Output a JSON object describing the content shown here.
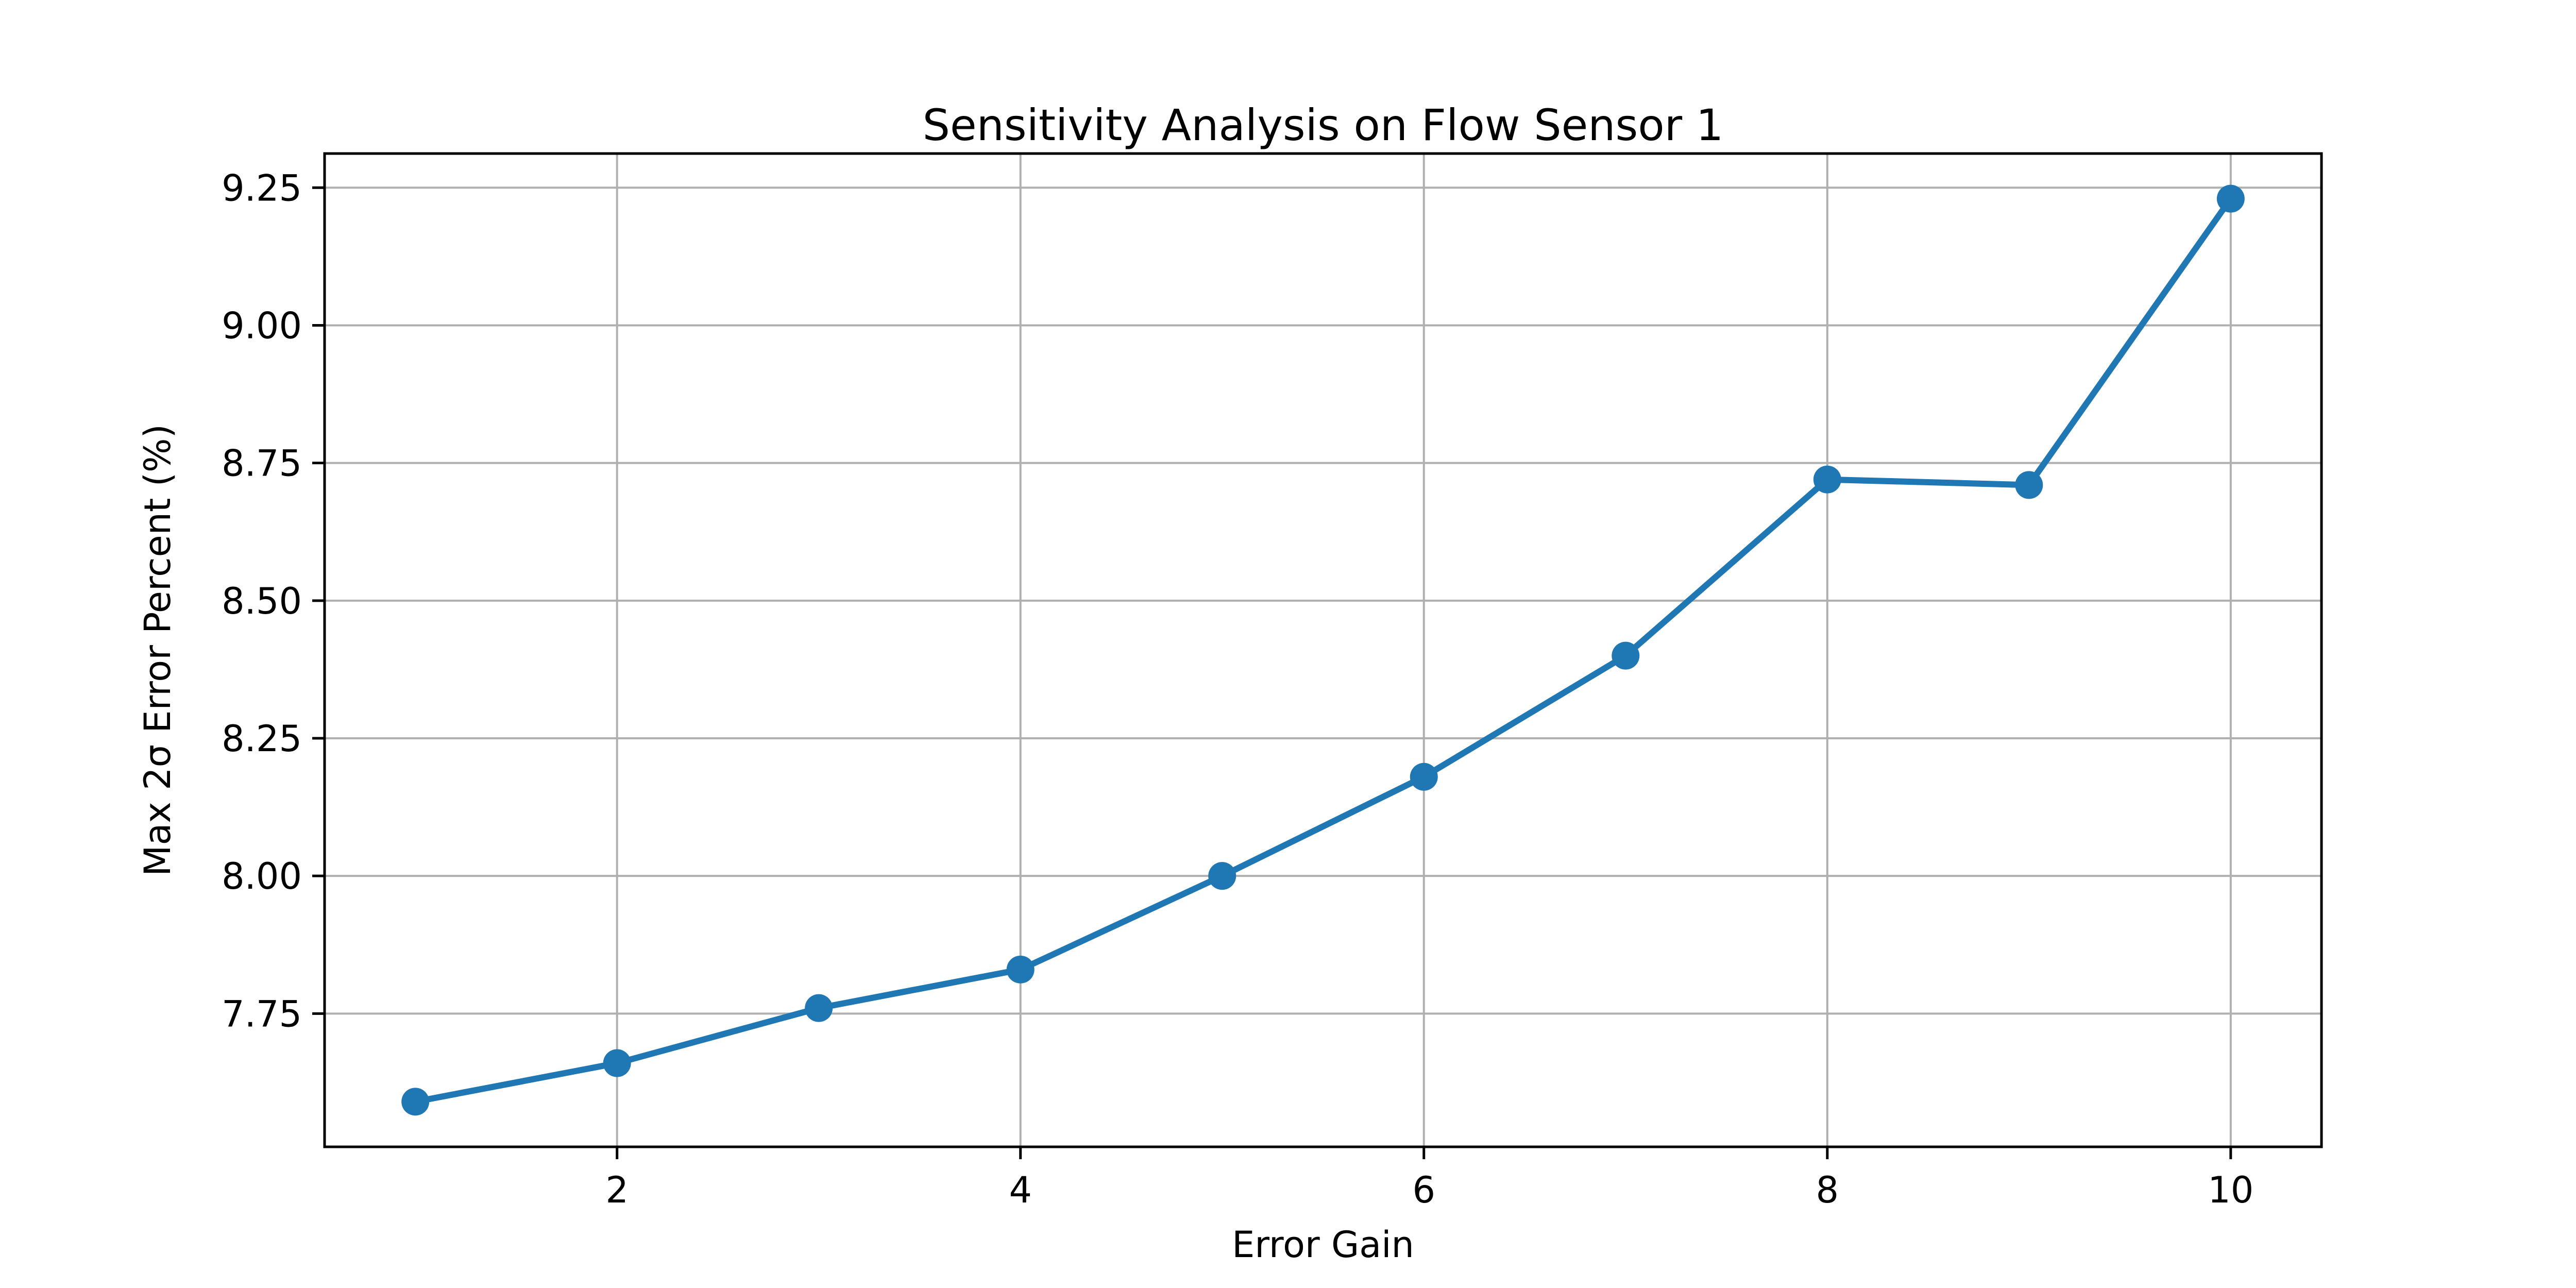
{
  "figure": {
    "background": "#ffffff"
  },
  "chart_data": {
    "type": "line",
    "title": "Sensitivity Analysis on Flow Sensor 1",
    "xlabel": "Error Gain",
    "ylabel": "Max 2σ Error Percent (%)",
    "x": [
      1,
      2,
      3,
      4,
      5,
      6,
      7,
      8,
      9,
      10
    ],
    "y": [
      7.59,
      7.66,
      7.76,
      7.83,
      8.0,
      8.18,
      8.4,
      8.72,
      8.71,
      9.23
    ],
    "xlim": [
      0.55,
      10.45
    ],
    "ylim": [
      7.508,
      9.312
    ],
    "xticks": [
      2,
      4,
      6,
      8,
      10
    ],
    "xtick_labels": [
      "2",
      "4",
      "6",
      "8",
      "10"
    ],
    "yticks": [
      7.75,
      8.0,
      8.25,
      8.5,
      8.75,
      9.0,
      9.25
    ],
    "ytick_labels": [
      "7.75",
      "8.00",
      "8.25",
      "8.50",
      "8.75",
      "9.00",
      "9.25"
    ],
    "grid": true,
    "legend": false,
    "marker": "circle",
    "colors": {
      "line": "#1f77b4",
      "marker": "#1f77b4",
      "grid": "#b0b0b0",
      "axis": "#000000",
      "text": "#000000",
      "background": "#ffffff"
    }
  }
}
